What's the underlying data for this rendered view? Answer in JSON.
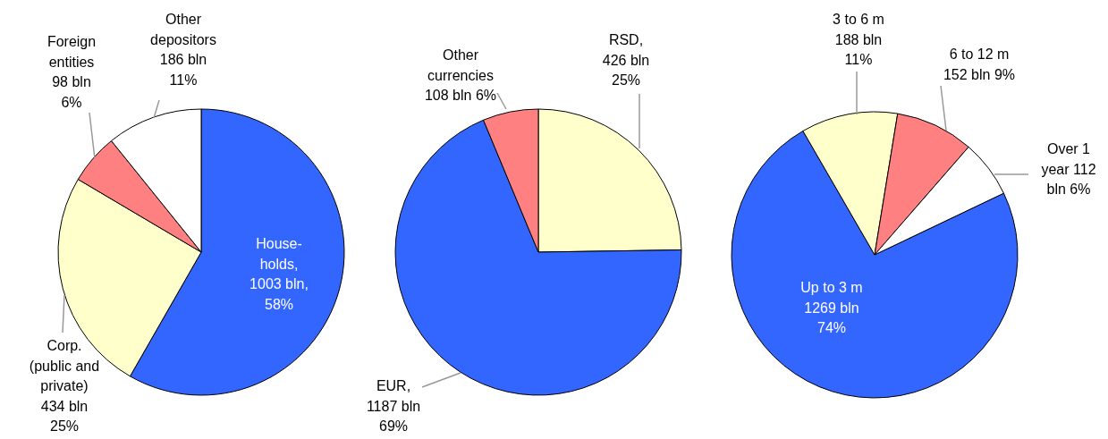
{
  "chart_data": [
    {
      "type": "pie",
      "categories": [
        "House-holds",
        "Corp. (public and private)",
        "Foreign entities",
        "Other depositors"
      ],
      "values": [
        1003,
        434,
        98,
        186
      ],
      "value_labels": [
        ", 1003 bln, 58%",
        "434 bln 25%",
        "98 bln 6%",
        "186 bln 11%"
      ],
      "colors": [
        "#3366ff",
        "#ffffcc",
        "#ff8080",
        "#ffffff"
      ]
    },
    {
      "type": "pie",
      "categories": [
        "RSD",
        "EUR",
        "Other currencies"
      ],
      "values": [
        426,
        1187,
        108
      ],
      "value_labels": [
        ", 426 bln 25%",
        ", 1187 bln 69%",
        "108 bln 6%"
      ],
      "colors": [
        "#ffffcc",
        "#3366ff",
        "#ff8080"
      ]
    },
    {
      "type": "pie",
      "categories": [
        "Up to 3 m",
        "3 to 6 m",
        "6 to 12 m",
        "Over 1 year"
      ],
      "values": [
        1269,
        188,
        152,
        112
      ],
      "value_labels": [
        "1269 bln 74%",
        "188 bln 11%",
        "152 bln 9%",
        "112 bln 6%"
      ],
      "colors": [
        "#3366ff",
        "#ffffcc",
        "#ff8080",
        "#ffffff"
      ]
    }
  ]
}
